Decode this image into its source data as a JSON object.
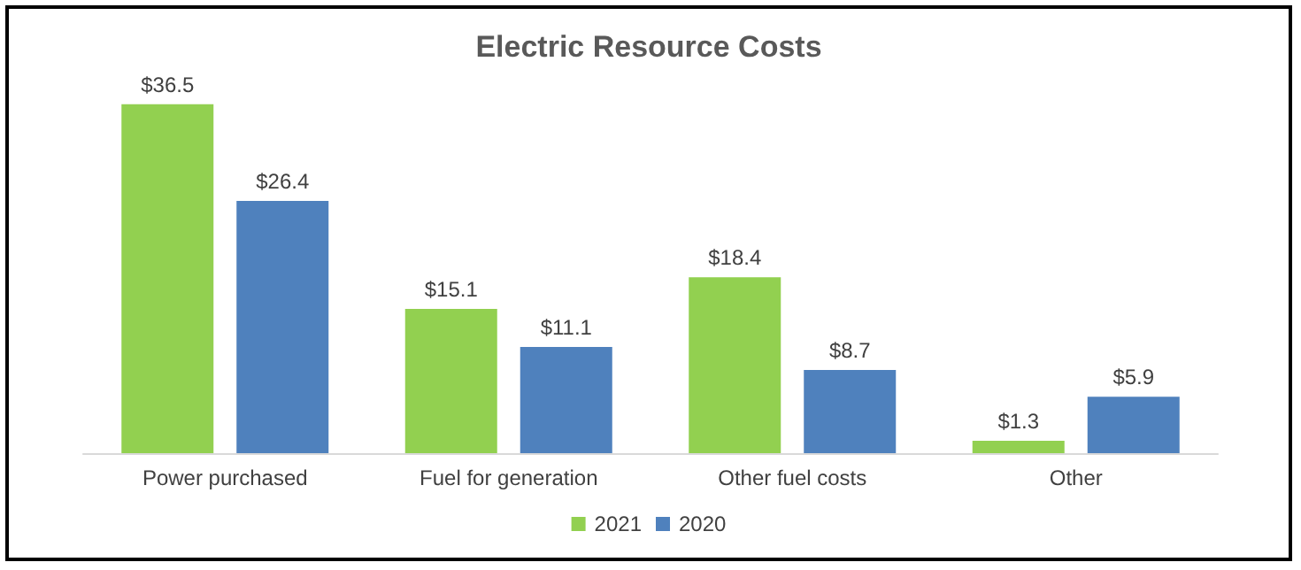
{
  "chart_data": {
    "type": "bar",
    "title": "Electric Resource Costs",
    "categories": [
      "Power purchased",
      "Fuel for generation",
      "Other fuel costs",
      "Other"
    ],
    "series": [
      {
        "name": "2021",
        "color": "#92d050",
        "values": [
          36.5,
          15.1,
          18.4,
          1.3
        ],
        "value_labels": [
          "$36.5",
          "$15.1",
          "$18.4",
          "$1.3"
        ]
      },
      {
        "name": "2020",
        "color": "#4f81bd",
        "values": [
          26.4,
          11.1,
          8.7,
          5.9
        ],
        "value_labels": [
          "$26.4",
          "$11.1",
          "$8.7",
          "$5.9"
        ]
      }
    ],
    "legend": "bottom"
  }
}
